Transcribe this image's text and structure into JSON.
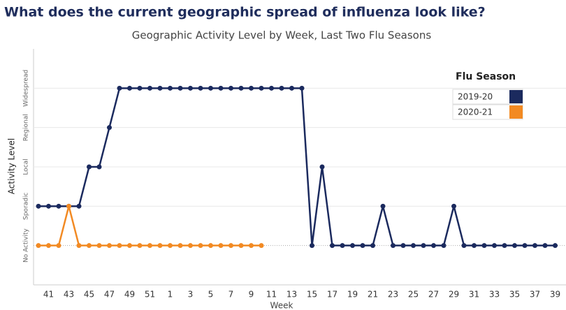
{
  "chart_data": {
    "type": "line",
    "title": "What does the current geographic spread of influenza look like?",
    "subtitle": "Geographic Activity Level by Week, Last Two Flu Seasons",
    "x_label": "Week",
    "y_label": "Activity Level",
    "legend_title": "Flu Season",
    "legend_position": "upper right",
    "grid": true,
    "categories": [
      null,
      41,
      null,
      43,
      null,
      45,
      null,
      47,
      null,
      49,
      null,
      51,
      null,
      1,
      null,
      3,
      null,
      5,
      null,
      7,
      null,
      9,
      null,
      11,
      null,
      13,
      null,
      15,
      null,
      17,
      null,
      19,
      null,
      21,
      null,
      23,
      null,
      25,
      null,
      27,
      null,
      29,
      null,
      31,
      null,
      33,
      null,
      35,
      null,
      37,
      null,
      39
    ],
    "ylim": [
      -1,
      5
    ],
    "yticks": [
      {
        "value": 0,
        "label": "No Activity"
      },
      {
        "value": 1,
        "label": "Sporadic"
      },
      {
        "value": 2,
        "label": "Local"
      },
      {
        "value": 3,
        "label": "Regional"
      },
      {
        "value": 4,
        "label": "Widespread"
      }
    ],
    "series": [
      {
        "name": "2019-20",
        "color": "#1b2a5e",
        "values": [
          1,
          1,
          1,
          1,
          1,
          2,
          2,
          3,
          4,
          4,
          4,
          4,
          4,
          4,
          4,
          4,
          4,
          4,
          4,
          4,
          4,
          4,
          4,
          4,
          4,
          4,
          4,
          0,
          2,
          0,
          0,
          0,
          0,
          0,
          1,
          0,
          0,
          0,
          0,
          0,
          0,
          1,
          0,
          0,
          0,
          0,
          0,
          0,
          0,
          0,
          0,
          0
        ]
      },
      {
        "name": "2020-21",
        "color": "#f28a23",
        "values": [
          0,
          0,
          0,
          1,
          0,
          0,
          0,
          0,
          0,
          0,
          0,
          0,
          0,
          0,
          0,
          0,
          0,
          0,
          0,
          0,
          0,
          0,
          0,
          null,
          null,
          null,
          null,
          null,
          null,
          null,
          null,
          null,
          null,
          null,
          null,
          null,
          null,
          null,
          null,
          null,
          null,
          null,
          null,
          null,
          null,
          null,
          null,
          null,
          null,
          null,
          null,
          null
        ]
      }
    ]
  }
}
